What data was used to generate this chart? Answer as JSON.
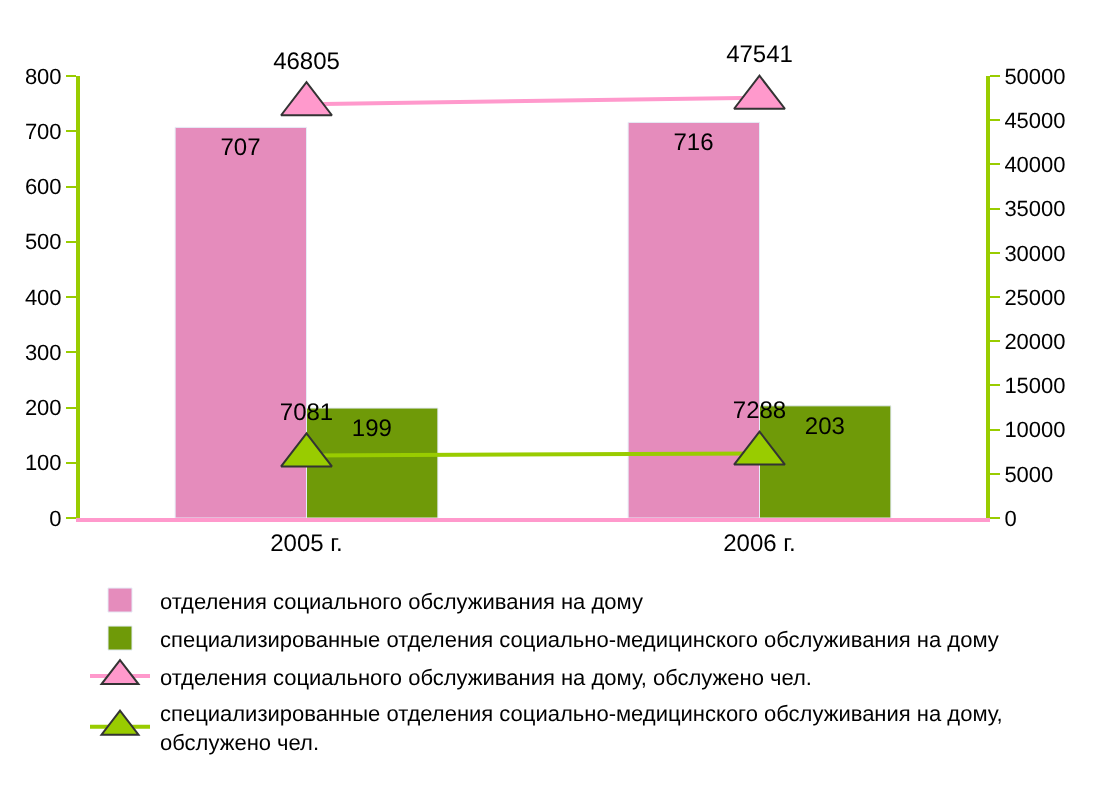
{
  "chart_data": {
    "type": "bar",
    "categories": [
      "2005 г.",
      "2006 г."
    ],
    "series": [
      {
        "name": "отделения социального обслуживания на дому",
        "color": "#e58cbc",
        "values": [
          707,
          716
        ]
      },
      {
        "name": "специализированные отделения социально-медицинского обслуживания на дому",
        "color": "#6f9a08",
        "values": [
          199,
          203
        ]
      },
      {
        "name": "отделения социального обслуживания на дому, обслужено чел.",
        "type": "line",
        "axis": "y2",
        "color": "#ff99cc",
        "values": [
          46805,
          47541
        ]
      },
      {
        "name": "специализированные отделения социально-медицинского обслуживания на дому, обслужено чел.",
        "type": "line",
        "axis": "y2",
        "color": "#99cc00",
        "values": [
          7081,
          7288
        ]
      }
    ],
    "ylim": [
      0,
      800
    ],
    "yticks": [
      0,
      100,
      200,
      300,
      400,
      500,
      600,
      700,
      800
    ],
    "y2lim": [
      0,
      50000
    ],
    "y2ticks": [
      0,
      5000,
      10000,
      15000,
      20000,
      25000,
      30000,
      35000,
      40000,
      45000,
      50000
    ],
    "data_labels": true,
    "marker": "triangle",
    "legend": "bottom"
  }
}
